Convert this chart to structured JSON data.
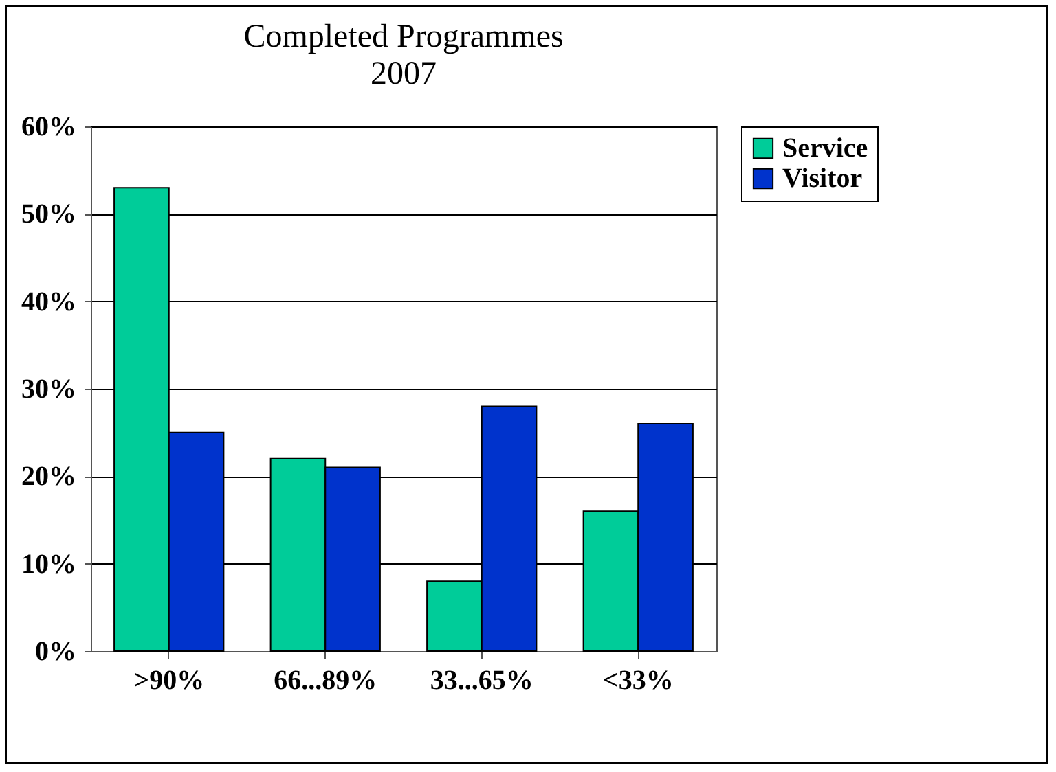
{
  "chart_data": {
    "type": "bar",
    "title": "Completed Programmes",
    "subtitle": "2007",
    "categories": [
      ">90%",
      "66...89%",
      "33...65%",
      "<33%"
    ],
    "series": [
      {
        "name": "Service",
        "color": "#00cc99",
        "values": [
          53,
          22,
          8,
          16
        ]
      },
      {
        "name": "Visitor",
        "color": "#0033cc",
        "values": [
          25,
          21,
          28,
          26
        ]
      }
    ],
    "ylim": [
      0,
      60
    ],
    "yticks": [
      {
        "value": 0,
        "label": "0%"
      },
      {
        "value": 10,
        "label": "10%"
      },
      {
        "value": 20,
        "label": "20%"
      },
      {
        "value": 30,
        "label": "30%"
      },
      {
        "value": 40,
        "label": "40%"
      },
      {
        "value": 50,
        "label": "50%"
      },
      {
        "value": 60,
        "label": "60%"
      }
    ],
    "grid": "y",
    "legend": "right"
  }
}
